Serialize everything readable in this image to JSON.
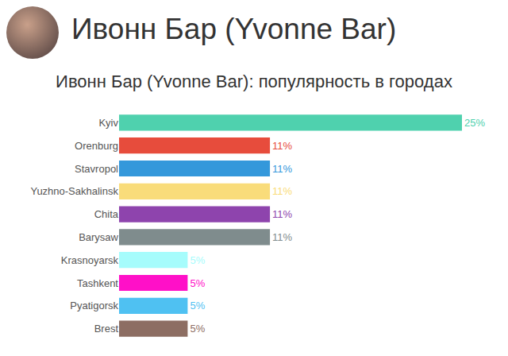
{
  "header": "Ивонн Бар (Yvonne Bar)",
  "chart_data": {
    "type": "bar",
    "orientation": "horizontal",
    "title": "Ивонн Бар (Yvonne Bar): популярность в городах",
    "categories": [
      "Kyiv",
      "Orenburg",
      "Stavropol",
      "Yuzhno-Sakhalinsk",
      "Chita",
      "Barysaw",
      "Krasnoyarsk",
      "Tashkent",
      "Pyatigorsk",
      "Brest"
    ],
    "values": [
      25,
      11,
      11,
      11,
      11,
      11,
      5,
      5,
      5,
      5
    ],
    "value_labels": [
      "25%",
      "11%",
      "11%",
      "11%",
      "11%",
      "11%",
      "5%",
      "5%",
      "5%",
      "5%"
    ],
    "colors": [
      "#4fd1ae",
      "#e74c3c",
      "#3498db",
      "#f9dc7a",
      "#8e44ad",
      "#7f8c8d",
      "#a6fcfc",
      "#ff10c8",
      "#4fc1f2",
      "#8d6e63"
    ],
    "xlim": [
      0,
      25
    ],
    "data_labels": true,
    "tick_labels": "y",
    "grid": false
  }
}
